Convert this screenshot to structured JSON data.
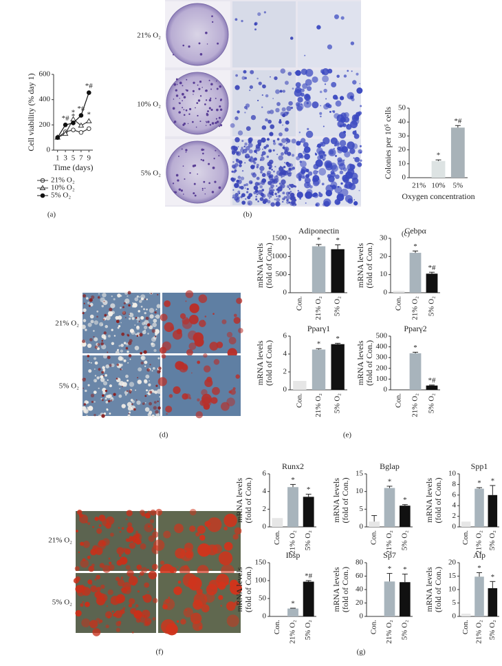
{
  "figure": {
    "panels": [
      "(a)",
      "(b)",
      "(c)",
      "(d)",
      "(e)",
      "(f)",
      "(g)"
    ],
    "photo_labels_b": [
      "21% O₂",
      "10% O₂",
      "5% O₂"
    ],
    "photo_labels_d": [
      "21% O₂",
      "5% O₂"
    ],
    "photo_labels_f": [
      "21% O₂",
      "5% O₂"
    ]
  },
  "chart_data": [
    {
      "type": "line",
      "x": [
        1,
        3,
        5,
        7,
        9
      ],
      "xlim": [
        0,
        10
      ],
      "xticks": [
        1,
        3,
        5,
        7,
        9
      ],
      "ylim": [
        0,
        600
      ],
      "yticks": [
        0,
        200,
        400,
        600
      ],
      "xlabel": "Time (days)",
      "ylabel": "Cell viability (% day 1)",
      "legend": "bottom",
      "series": [
        {
          "name": "21% O₂",
          "color": "#333333",
          "marker": "circle-open",
          "values": [
            100,
            145,
            160,
            140,
            170
          ],
          "significance": [
            null,
            null,
            null,
            null,
            null
          ]
        },
        {
          "name": "10% O₂",
          "color": "#333333",
          "marker": "triangle-open",
          "values": [
            100,
            130,
            245,
            195,
            230
          ],
          "significance": [
            null,
            null,
            "*",
            null,
            "*"
          ]
        },
        {
          "name": "5% O₂",
          "color": "#111111",
          "marker": "circle-filled",
          "values": [
            100,
            200,
            215,
            275,
            455
          ],
          "significance": [
            null,
            "*#",
            "*",
            "*#",
            "*#"
          ]
        }
      ]
    },
    {
      "type": "bar",
      "categories": [
        "21%",
        "10%",
        "5%"
      ],
      "values": [
        0,
        12,
        36
      ],
      "errors": [
        0,
        0.8,
        1.5
      ],
      "significance": [
        null,
        "*",
        "*#"
      ],
      "colors": [
        "#dde3e3",
        "#dde3e3",
        "#a8b2b8"
      ],
      "ylim": [
        0,
        50
      ],
      "yticks": [
        0,
        10,
        20,
        30,
        40,
        50
      ],
      "ylabel": [
        "Colonies per 10⁵ cells"
      ],
      "xlabel": "Oxygen concentration"
    },
    {
      "type": "bar",
      "title": "Adiponectin",
      "categories": [
        "Con.",
        "21% O₂",
        "5% O₂"
      ],
      "values": [
        0,
        1280,
        1200
      ],
      "errors": [
        0,
        50,
        120
      ],
      "significance": [
        null,
        "*",
        "*"
      ],
      "colors": [
        "#e6e6e6",
        "#a8b4bc",
        "#111111"
      ],
      "ylim": [
        0,
        1500
      ],
      "yticks": [
        0,
        500,
        1000,
        1500
      ],
      "ylabel": [
        "mRNA levels",
        "(fold of Con.)"
      ]
    },
    {
      "type": "bar",
      "title": "Cebpα",
      "categories": [
        "Con.",
        "21% O₂",
        "5% O₂"
      ],
      "values": [
        1,
        22,
        10.5
      ],
      "errors": [
        0,
        1,
        0.8
      ],
      "significance": [
        null,
        "*",
        "*#"
      ],
      "colors": [
        "#e6e6e6",
        "#a8b4bc",
        "#111111"
      ],
      "ylim": [
        0,
        30
      ],
      "yticks": [
        0,
        10,
        20,
        30
      ],
      "ylabel": [
        "mRNA levels",
        "(fold of Con.)"
      ]
    },
    {
      "type": "bar",
      "title": "Pparγ1",
      "categories": [
        "Con.",
        "21% O₂",
        "5% O₂"
      ],
      "values": [
        1,
        4.5,
        5.1
      ],
      "errors": [
        0,
        0.1,
        0.1
      ],
      "significance": [
        null,
        "*",
        "*"
      ],
      "colors": [
        "#e6e6e6",
        "#a8b4bc",
        "#111111"
      ],
      "ylim": [
        0,
        6
      ],
      "yticks": [
        0,
        2,
        4,
        6
      ],
      "ylabel": [
        "mRNA levels",
        "(fold of Con.)"
      ]
    },
    {
      "type": "bar",
      "title": "Pparγ2",
      "categories": [
        "Con.",
        "21% O₂",
        "5% O₂"
      ],
      "values": [
        0,
        340,
        40
      ],
      "errors": [
        0,
        10,
        5
      ],
      "significance": [
        null,
        "*",
        "*#"
      ],
      "colors": [
        "#e6e6e6",
        "#a8b4bc",
        "#111111"
      ],
      "ylim": [
        0,
        500
      ],
      "yticks": [
        0,
        100,
        200,
        300,
        400,
        500
      ],
      "ylabel": [
        "mRNA levels",
        "(fold of Con.)"
      ]
    },
    {
      "type": "bar",
      "title": "Runx2",
      "categories": [
        "Con.",
        "21% O₂",
        "5% O₂"
      ],
      "values": [
        1,
        4.5,
        3.4
      ],
      "errors": [
        0,
        0.3,
        0.3
      ],
      "significance": [
        null,
        "*",
        "*"
      ],
      "colors": [
        "#e6e6e6",
        "#a8b4bc",
        "#111111"
      ],
      "ylim": [
        0,
        6
      ],
      "yticks": [
        0,
        2,
        4,
        6
      ],
      "ylabel": [
        "mRNA levels",
        "(fold of Con.)"
      ]
    },
    {
      "type": "bar",
      "title": "Bglap",
      "categories": [
        "Con.",
        "21% O₂",
        "5% O₂"
      ],
      "values": [
        1.5,
        11,
        6
      ],
      "errors": [
        1.7,
        0.5,
        0.3
      ],
      "significance": [
        null,
        "*",
        "*"
      ],
      "colors": [
        "#e6e6e6",
        "#a8b4bc",
        "#111111"
      ],
      "ylim": [
        0,
        15
      ],
      "yticks": [
        0,
        5,
        10,
        15
      ],
      "ylabel": [
        "mRNA levels",
        "(fold of Con.)"
      ]
    },
    {
      "type": "bar",
      "title": "Spp1",
      "categories": [
        "Con.",
        "21% O₂",
        "5% O₂"
      ],
      "values": [
        1,
        7.2,
        6
      ],
      "errors": [
        0,
        0.2,
        1.8
      ],
      "significance": [
        null,
        "*",
        "*"
      ],
      "colors": [
        "#e6e6e6",
        "#a8b4bc",
        "#111111"
      ],
      "ylim": [
        0,
        10
      ],
      "yticks": [
        0,
        2,
        4,
        6,
        8,
        10
      ],
      "ylabel": [
        "mRNA levels",
        "(fold of Con.)"
      ]
    },
    {
      "type": "bar",
      "title": "Ibsp",
      "categories": [
        "Con.",
        "21% O₂",
        "5% O₂"
      ],
      "values": [
        0,
        22,
        97
      ],
      "errors": [
        0,
        1,
        3
      ],
      "significance": [
        null,
        "*",
        "*#"
      ],
      "colors": [
        "#e6e6e6",
        "#a8b4bc",
        "#111111"
      ],
      "ylim": [
        0,
        150
      ],
      "yticks": [
        0,
        50,
        100,
        150
      ],
      "ylabel": [
        "mRNA levels",
        "(fold of Con.)"
      ]
    },
    {
      "type": "bar",
      "title": "Sp7",
      "categories": [
        "Con.",
        "21% O₂",
        "5% O₂"
      ],
      "values": [
        0,
        52,
        51
      ],
      "errors": [
        0,
        12,
        12
      ],
      "significance": [
        null,
        "*",
        "*"
      ],
      "colors": [
        "#e6e6e6",
        "#a8b4bc",
        "#111111"
      ],
      "ylim": [
        0,
        80
      ],
      "yticks": [
        0,
        20,
        40,
        60,
        80
      ],
      "ylabel": [
        "mRNA levels",
        "(fold of Con.)"
      ]
    },
    {
      "type": "bar",
      "title": "Alp",
      "categories": [
        "Con.",
        "21% O₂",
        "5% O₂"
      ],
      "values": [
        1,
        14.8,
        10.5
      ],
      "errors": [
        0,
        1.5,
        2.5
      ],
      "significance": [
        null,
        "*",
        "*"
      ],
      "colors": [
        "#e6e6e6",
        "#a8b4bc",
        "#111111"
      ],
      "ylim": [
        0,
        20
      ],
      "yticks": [
        0,
        5,
        10,
        15,
        20
      ],
      "ylabel": [
        "mRNA levels",
        "(fold of Con.)"
      ]
    }
  ]
}
